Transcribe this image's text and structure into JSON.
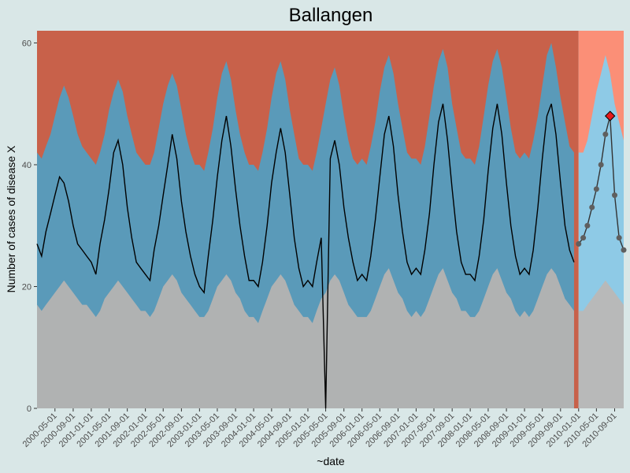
{
  "chart_data": {
    "type": "area",
    "title": "Ballangen",
    "x_label": "~date",
    "y_label": "Number of cases of disease X",
    "xlim": [
      "2000-01-01",
      "2010-11-01"
    ],
    "xticks": [
      "2000-05-01",
      "2000-09-01",
      "2001-01-01",
      "2001-05-01",
      "2001-09-01",
      "2002-01-01",
      "2002-05-01",
      "2002-09-01",
      "2003-01-01",
      "2003-05-01",
      "2003-09-01",
      "2004-01-01",
      "2004-05-01",
      "2004-09-01",
      "2005-01-01",
      "2005-05-01",
      "2005-09-01",
      "2006-01-01",
      "2006-05-01",
      "2006-09-01",
      "2007-01-01",
      "2007-05-01",
      "2007-09-01",
      "2008-01-01",
      "2008-05-01",
      "2008-09-01",
      "2009-01-01",
      "2009-05-01",
      "2009-09-01",
      "2010-01-01",
      "2010-05-01",
      "2010-09-01"
    ],
    "ylim": [
      0,
      62
    ],
    "yticks": [
      0,
      20,
      40,
      60
    ],
    "background_color": "#c8614a",
    "future_background_color": "#fb8f77",
    "x": [
      "2000-01-01",
      "2000-02-01",
      "2000-03-01",
      "2000-04-01",
      "2000-05-01",
      "2000-06-01",
      "2000-07-01",
      "2000-08-01",
      "2000-09-01",
      "2000-10-01",
      "2000-11-01",
      "2000-12-01",
      "2001-01-01",
      "2001-02-01",
      "2001-03-01",
      "2001-04-01",
      "2001-05-01",
      "2001-06-01",
      "2001-07-01",
      "2001-08-01",
      "2001-09-01",
      "2001-10-01",
      "2001-11-01",
      "2001-12-01",
      "2002-01-01",
      "2002-02-01",
      "2002-03-01",
      "2002-04-01",
      "2002-05-01",
      "2002-06-01",
      "2002-07-01",
      "2002-08-01",
      "2002-09-01",
      "2002-10-01",
      "2002-11-01",
      "2002-12-01",
      "2003-01-01",
      "2003-02-01",
      "2003-03-01",
      "2003-04-01",
      "2003-05-01",
      "2003-06-01",
      "2003-07-01",
      "2003-08-01",
      "2003-09-01",
      "2003-10-01",
      "2003-11-01",
      "2003-12-01",
      "2004-01-01",
      "2004-02-01",
      "2004-03-01",
      "2004-04-01",
      "2004-05-01",
      "2004-06-01",
      "2004-07-01",
      "2004-08-01",
      "2004-09-01",
      "2004-10-01",
      "2004-11-01",
      "2004-12-01",
      "2005-01-01",
      "2005-02-01",
      "2005-03-01",
      "2005-04-01",
      "2005-05-01",
      "2005-06-01",
      "2005-07-01",
      "2005-08-01",
      "2005-09-01",
      "2005-10-01",
      "2005-11-01",
      "2005-12-01",
      "2006-01-01",
      "2006-02-01",
      "2006-03-01",
      "2006-04-01",
      "2006-05-01",
      "2006-06-01",
      "2006-07-01",
      "2006-08-01",
      "2006-09-01",
      "2006-10-01",
      "2006-11-01",
      "2006-12-01",
      "2007-01-01",
      "2007-02-01",
      "2007-03-01",
      "2007-04-01",
      "2007-05-01",
      "2007-06-01",
      "2007-07-01",
      "2007-08-01",
      "2007-09-01",
      "2007-10-01",
      "2007-11-01",
      "2007-12-01",
      "2008-01-01",
      "2008-02-01",
      "2008-03-01",
      "2008-04-01",
      "2008-05-01",
      "2008-06-01",
      "2008-07-01",
      "2008-08-01",
      "2008-09-01",
      "2008-10-01",
      "2008-11-01",
      "2008-12-01",
      "2009-01-01",
      "2009-02-01",
      "2009-03-01",
      "2009-04-01",
      "2009-05-01",
      "2009-06-01",
      "2009-07-01",
      "2009-08-01",
      "2009-09-01",
      "2009-10-01",
      "2009-11-01",
      "2009-12-01"
    ],
    "series": [
      {
        "style": "area",
        "color": "#5a9ab9",
        "values": [
          42,
          41,
          43,
          45,
          48,
          51,
          53,
          51,
          48,
          45,
          43,
          42,
          41,
          40,
          42,
          45,
          49,
          52,
          54,
          52,
          48,
          45,
          42,
          41,
          40,
          40,
          42,
          46,
          50,
          53,
          55,
          53,
          49,
          45,
          42,
          40,
          40,
          39,
          42,
          46,
          51,
          55,
          57,
          54,
          49,
          45,
          42,
          40,
          40,
          39,
          42,
          46,
          51,
          55,
          57,
          54,
          49,
          45,
          41,
          40,
          40,
          39,
          42,
          46,
          50,
          54,
          56,
          53,
          48,
          44,
          41,
          40,
          41,
          40,
          43,
          47,
          52,
          56,
          58,
          55,
          50,
          46,
          42,
          41,
          41,
          40,
          43,
          48,
          53,
          57,
          59,
          56,
          50,
          46,
          42,
          41,
          41,
          40,
          43,
          48,
          53,
          57,
          59,
          56,
          51,
          46,
          42,
          41,
          42,
          41,
          44,
          48,
          53,
          58,
          60,
          56,
          51,
          47,
          43,
          42
        ]
      },
      {
        "style": "area",
        "color": "#b0b2b2",
        "values": [
          17,
          16,
          17,
          18,
          19,
          20,
          21,
          20,
          19,
          18,
          17,
          17,
          16,
          15,
          16,
          18,
          19,
          20,
          21,
          20,
          19,
          18,
          17,
          16,
          16,
          15,
          16,
          18,
          20,
          21,
          22,
          21,
          19,
          18,
          17,
          16,
          15,
          15,
          16,
          18,
          20,
          21,
          22,
          21,
          19,
          18,
          16,
          15,
          15,
          14,
          16,
          18,
          20,
          21,
          22,
          21,
          19,
          17,
          16,
          15,
          15,
          14,
          16,
          18,
          19,
          21,
          22,
          21,
          19,
          17,
          16,
          15,
          15,
          15,
          16,
          18,
          20,
          22,
          23,
          21,
          19,
          18,
          16,
          15,
          16,
          15,
          16,
          18,
          20,
          22,
          23,
          21,
          19,
          18,
          16,
          16,
          15,
          15,
          16,
          18,
          20,
          22,
          23,
          21,
          19,
          18,
          16,
          15,
          16,
          15,
          16,
          18,
          20,
          22,
          23,
          22,
          20,
          18,
          17,
          16
        ]
      },
      {
        "style": "line",
        "color": "#000000",
        "values": [
          27,
          25,
          29,
          32,
          35,
          38,
          37,
          34,
          30,
          27,
          26,
          25,
          24,
          22,
          27,
          31,
          36,
          42,
          44,
          40,
          33,
          28,
          24,
          23,
          22,
          21,
          26,
          30,
          35,
          40,
          45,
          41,
          34,
          29,
          25,
          22,
          20,
          19,
          25,
          31,
          38,
          44,
          48,
          43,
          36,
          30,
          25,
          21,
          21,
          20,
          24,
          30,
          37,
          42,
          46,
          42,
          35,
          28,
          23,
          20,
          21,
          20,
          24,
          28,
          0,
          41,
          44,
          40,
          33,
          28,
          24,
          21,
          22,
          21,
          25,
          31,
          38,
          45,
          48,
          43,
          35,
          29,
          24,
          22,
          23,
          22,
          26,
          32,
          40,
          47,
          50,
          44,
          36,
          29,
          24,
          22,
          22,
          21,
          25,
          31,
          39,
          46,
          50,
          45,
          37,
          30,
          25,
          22,
          23,
          22,
          26,
          33,
          41,
          48,
          50,
          45,
          37,
          30,
          26,
          24
        ]
      }
    ],
    "future_x": [
      "2010-01-01",
      "2010-02-01",
      "2010-03-01",
      "2010-04-01",
      "2010-05-01",
      "2010-06-01",
      "2010-07-01",
      "2010-08-01",
      "2010-09-01",
      "2010-10-01",
      "2010-11-01"
    ],
    "future_series": [
      {
        "style": "area",
        "color": "#8ecae6",
        "values": [
          42,
          42,
          44,
          48,
          52,
          55,
          58,
          55,
          50,
          47,
          44
        ]
      },
      {
        "style": "area",
        "color": "#b8b9b9",
        "values": [
          16,
          16,
          17,
          18,
          19,
          20,
          21,
          20,
          19,
          18,
          17
        ]
      },
      {
        "style": "points",
        "color": "#5f5f5f",
        "values": [
          27,
          28,
          30,
          33,
          36,
          40,
          45,
          48,
          35,
          28,
          26
        ]
      }
    ],
    "alarms": {
      "x": [
        "2010-08-01"
      ],
      "values": [
        48
      ],
      "color": "#e41a1c"
    }
  }
}
